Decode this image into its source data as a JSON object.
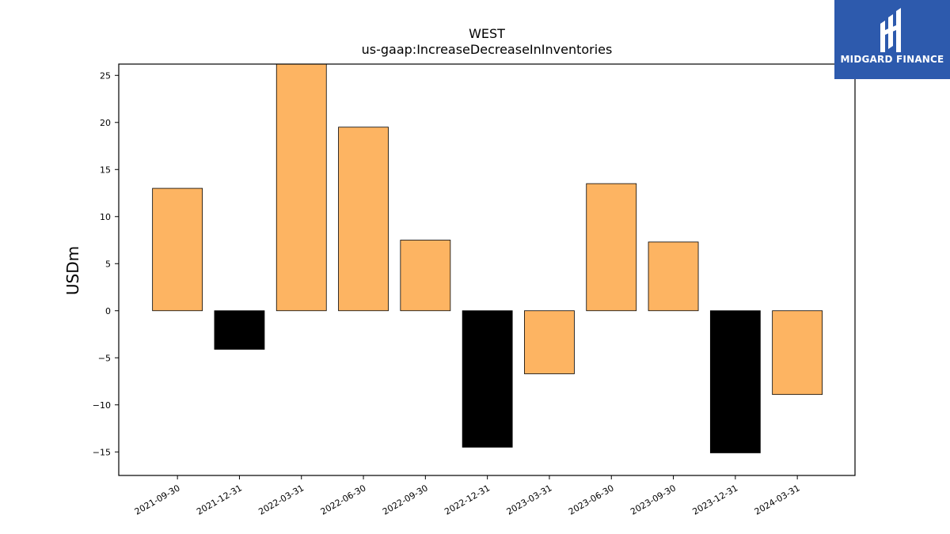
{
  "chart_data": {
    "type": "bar",
    "title": "WEST",
    "subtitle": "us-gaap:IncreaseDecreaseInInventories",
    "xlabel": "",
    "ylabel": "USDm",
    "categories": [
      "2021-09-30",
      "2021-12-31",
      "2022-03-31",
      "2022-06-30",
      "2022-09-30",
      "2022-12-31",
      "2023-03-31",
      "2023-06-30",
      "2023-09-30",
      "2023-12-31",
      "2024-03-31"
    ],
    "values": [
      13.0,
      -4.1,
      26.5,
      19.5,
      7.5,
      -14.5,
      -6.7,
      13.5,
      7.3,
      -15.1,
      -8.9
    ],
    "bar_colors": [
      "#fdb462",
      "#000000",
      "#fdb462",
      "#fdb462",
      "#fdb462",
      "#000000",
      "#fdb462",
      "#fdb462",
      "#fdb462",
      "#000000",
      "#fdb462"
    ],
    "ylim": [
      -17.5,
      26.2
    ],
    "yticks": [
      -15,
      -10,
      -5,
      0,
      5,
      10,
      15,
      20,
      25
    ],
    "grid": false,
    "legend": "none"
  },
  "logo": {
    "text": "MIDGARD FINANCE",
    "background": "#2d5aad"
  }
}
